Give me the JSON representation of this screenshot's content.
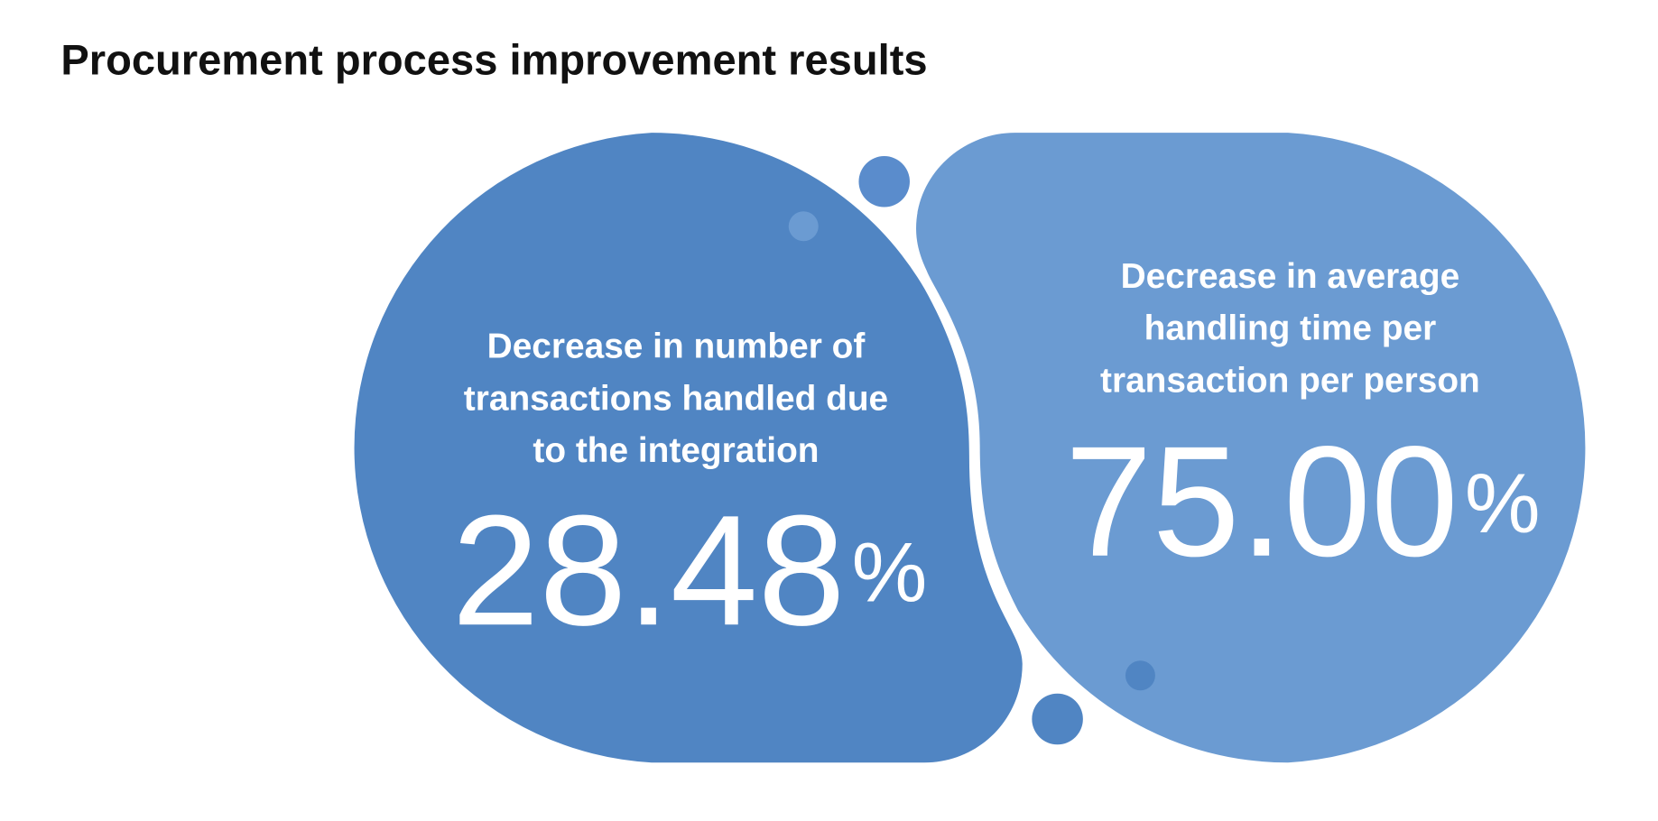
{
  "title": "Procurement process improvement results",
  "items": [
    {
      "label_lines": [
        "Decrease in number of",
        "transactions handled due",
        "to the integration"
      ],
      "value": "28.48",
      "unit": "%"
    },
    {
      "label_lines": [
        "Decrease in average",
        "handling time per",
        "transaction per person"
      ],
      "value": "75.00",
      "unit": "%"
    }
  ]
}
